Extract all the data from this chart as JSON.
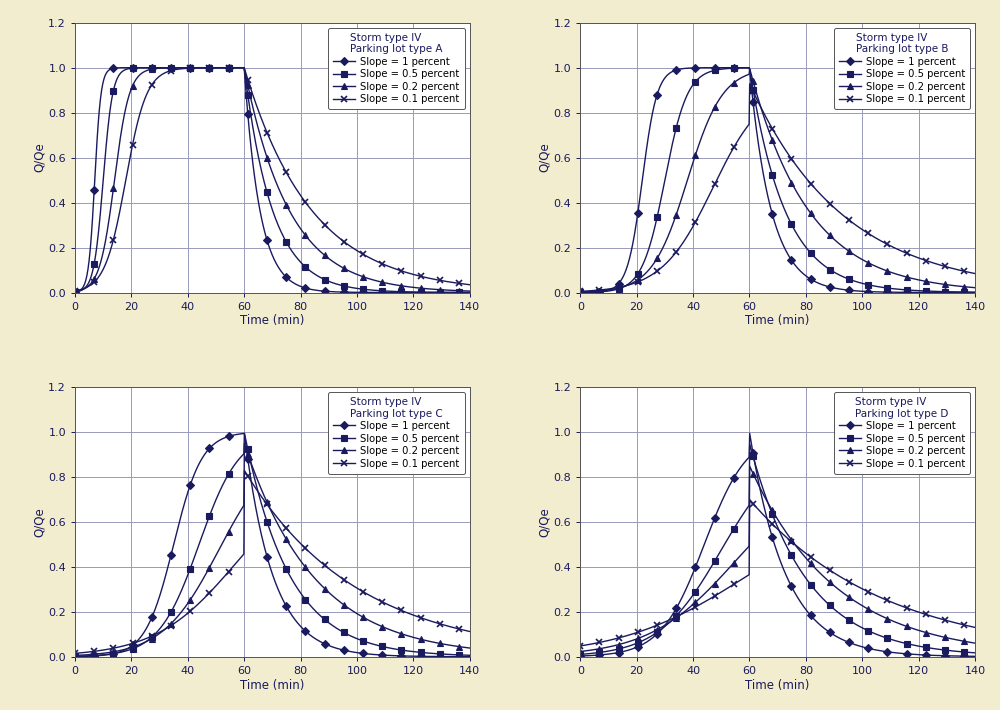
{
  "background_color": "#f2edce",
  "plot_bg_color": "#ffffff",
  "line_color": "#1a1a5e",
  "grid_color": "#9999bb",
  "font_color": "#1a1a5e",
  "subplots": [
    {
      "title_line1": "Storm type IV",
      "title_line2": "Parking lot type A",
      "curves": [
        {
          "rise_k": 0.9,
          "rise_t0": 7,
          "peak": 1.0,
          "peak_t": 60,
          "fall_k": 0.18,
          "fall_t0": 67
        },
        {
          "rise_k": 0.6,
          "rise_t0": 10,
          "peak": 1.0,
          "peak_t": 60,
          "fall_k": 0.1,
          "fall_t0": 71
        },
        {
          "rise_k": 0.38,
          "rise_t0": 14,
          "peak": 1.0,
          "peak_t": 60,
          "fall_k": 0.063,
          "fall_t0": 76
        },
        {
          "rise_k": 0.27,
          "rise_t0": 18,
          "peak": 1.0,
          "peak_t": 60,
          "fall_k": 0.042,
          "fall_t0": 82
        }
      ],
      "xlim": [
        0,
        140
      ],
      "ylim": [
        0,
        1.2
      ],
      "xticks": [
        0,
        20,
        40,
        60,
        80,
        100,
        120,
        140
      ]
    },
    {
      "title_line1": "Storm type IV",
      "title_line2": "Parking lot type B",
      "curves": [
        {
          "rise_k": 0.38,
          "rise_t0": 22,
          "peak": 1.0,
          "peak_t": 60,
          "fall_k": 0.13,
          "fall_t0": 65
        },
        {
          "rise_k": 0.25,
          "rise_t0": 30,
          "peak": 1.0,
          "peak_t": 60,
          "fall_k": 0.08,
          "fall_t0": 70
        },
        {
          "rise_k": 0.16,
          "rise_t0": 38,
          "peak": 1.0,
          "peak_t": 60,
          "fall_k": 0.048,
          "fall_t0": 76
        },
        {
          "rise_k": 0.11,
          "rise_t0": 47,
          "peak": 0.93,
          "peak_t": 60,
          "fall_k": 0.03,
          "fall_t0": 82
        }
      ],
      "xlim": [
        0,
        140
      ],
      "ylim": [
        0,
        1.2
      ],
      "xticks": [
        0,
        20,
        40,
        60,
        80,
        100,
        120,
        140
      ]
    },
    {
      "title_line1": "Storm type IV",
      "title_line2": "Parking lot type C",
      "curves": [
        {
          "rise_k": 0.2,
          "rise_t0": 35,
          "peak": 1.0,
          "peak_t": 60,
          "fall_k": 0.1,
          "fall_t0": 64
        },
        {
          "rise_k": 0.14,
          "rise_t0": 44,
          "peak": 1.0,
          "peak_t": 60,
          "fall_k": 0.063,
          "fall_t0": 68
        },
        {
          "rise_k": 0.1,
          "rise_t0": 51,
          "peak": 0.95,
          "peak_t": 60,
          "fall_k": 0.04,
          "fall_t0": 74
        },
        {
          "rise_k": 0.07,
          "rise_t0": 57,
          "peak": 0.83,
          "peak_t": 60,
          "fall_k": 0.025,
          "fall_t0": 80
        }
      ],
      "xlim": [
        0,
        140
      ],
      "ylim": [
        0,
        1.2
      ],
      "xticks": [
        0,
        20,
        40,
        60,
        80,
        100,
        120,
        140
      ]
    },
    {
      "title_line1": "Storm type IV",
      "title_line2": "Parking lot type D",
      "curves": [
        {
          "rise_k": 0.13,
          "rise_t0": 44,
          "peak": 1.0,
          "peak_t": 60,
          "fall_k": 0.078,
          "fall_t0": 64
        },
        {
          "rise_k": 0.09,
          "rise_t0": 50,
          "peak": 0.95,
          "peak_t": 60,
          "fall_k": 0.05,
          "fall_t0": 68
        },
        {
          "rise_k": 0.065,
          "rise_t0": 55,
          "peak": 0.85,
          "peak_t": 60,
          "fall_k": 0.033,
          "fall_t0": 73
        },
        {
          "rise_k": 0.045,
          "rise_t0": 58,
          "peak": 0.7,
          "peak_t": 60,
          "fall_k": 0.021,
          "fall_t0": 79
        }
      ],
      "xlim": [
        0,
        140
      ],
      "ylim": [
        0,
        1.2
      ],
      "xticks": [
        0,
        20,
        40,
        60,
        80,
        100,
        120,
        140
      ]
    }
  ],
  "legend_labels": [
    "Slope = 1 percent",
    "Slope = 0.5 percent",
    "Slope = 0.2 percent",
    "Slope = 0.1 percent"
  ],
  "markers": [
    "D",
    "s",
    "^",
    "x"
  ],
  "marker_sizes": [
    4,
    4,
    4,
    5
  ],
  "xlabel": "Time (min)",
  "ylabel": "Q/Qe"
}
